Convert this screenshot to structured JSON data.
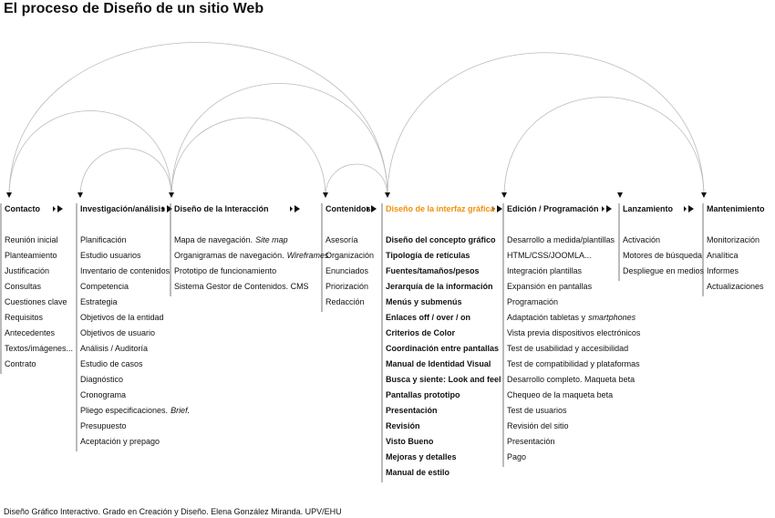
{
  "title": "El proceso de Diseño de un sitio Web",
  "columns": [
    {
      "heading": "Contacto",
      "items": [
        "Reunión inicial",
        "Planteamiento",
        "Justificación",
        "Consultas",
        "Cuestiones clave",
        "Requisitos",
        "Antecedentes",
        "Textos/imágenes...",
        "Contrato"
      ]
    },
    {
      "heading": "Investigación/análisis",
      "items": [
        "Planificación",
        "Estudio usuarios",
        "Inventario de contenidos",
        "Competencia",
        "Estrategia",
        "Objetivos de la entidad",
        "Objetivos de usuario",
        "Análisis / Auditoría",
        "Estudio de casos",
        "Diagnóstico",
        "Cronograma",
        {
          "text": "Pliego especificaciones.",
          "em": "Brief."
        },
        "Presupuesto",
        "Aceptación y prepago"
      ]
    },
    {
      "heading": "Diseño de la Interacción",
      "items": [
        {
          "text": "Mapa de navegación.",
          "em": "Site map"
        },
        {
          "text": "Organigramas de navegación.",
          "em": "Wireframes"
        },
        "Prototipo de funcionamiento",
        "Sistema Gestor de Contenidos. CMS"
      ]
    },
    {
      "heading": "Contenidos",
      "items": [
        "Asesoría",
        "Organización",
        "Enunciados",
        "Priorización",
        "Redacción"
      ]
    },
    {
      "heading": "Diseño de la interfaz gráfica",
      "items": [
        "Diseño del concepto gráfico",
        "Tipología de retículas",
        "Fuentes/tamaños/pesos",
        "Jerarquía de la información",
        "Menús y submenús",
        "Enlaces off / over / on",
        "Criterios de Color",
        "Coordinación entre pantallas",
        "Manual de Identidad Visual",
        "Busca y siente: Look and feel",
        "Pantallas prototipo",
        "Presentación",
        "Revisión",
        "Visto Bueno",
        "Mejoras y detalles",
        "Manual  de estilo"
      ]
    },
    {
      "heading": "Edición / Programación",
      "items": [
        "Desarrollo a medida/plantillas",
        "HTML/CSS/JOOMLA...",
        "Integración plantillas",
        "Expansión en pantallas",
        "Programación",
        {
          "text": "Adaptación tabletas y",
          "em": "smartphones"
        },
        "Vista previa dispositivos electrónicos",
        "Test de usabilidad y accesibilidad",
        "Test de compatibilidad y plataformas",
        "Desarrollo completo. Maqueta beta",
        "Chequeo de la maqueta beta",
        "Test de usuarios",
        "Revisión del sitio",
        "Presentación",
        "Pago"
      ]
    },
    {
      "heading": "Lanzamiento",
      "items": [
        "Activación",
        "Motores de búsqueda",
        "Despliegue en medios"
      ]
    },
    {
      "heading": "Mantenimiento",
      "items": [
        "Monitorización",
        "Analítica",
        "Informes",
        "Actualizaciones"
      ]
    }
  ],
  "footer": "Diseño Gráfico Interactivo. Grado en Creación y Diseño. Elena González Miranda. UPV/EHU"
}
